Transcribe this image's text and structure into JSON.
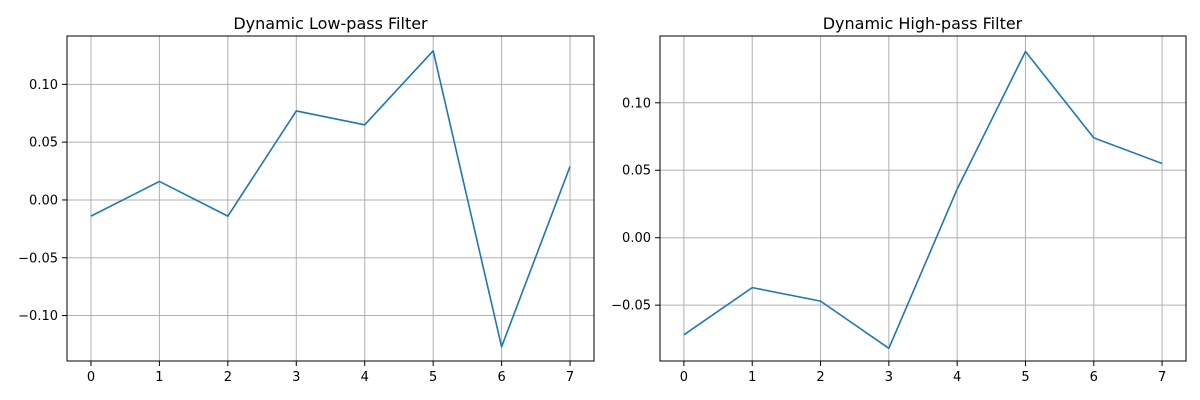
{
  "chart_data": [
    {
      "type": "line",
      "title": "Dynamic Low-pass Filter",
      "xlabel": "",
      "ylabel": "",
      "grid": true,
      "x": [
        0,
        1,
        2,
        3,
        4,
        5,
        6,
        7
      ],
      "xlim": [
        -0.35,
        7.35
      ],
      "ylim": [
        -0.1393,
        0.1418
      ],
      "xticks": [
        0,
        1,
        2,
        3,
        4,
        5,
        6,
        7
      ],
      "yticks": [
        -0.1,
        -0.05,
        0.0,
        0.05,
        0.1
      ],
      "ytick_labels": [
        "−0.10",
        "−0.05",
        "0.00",
        "0.05",
        "0.10"
      ],
      "series": [
        {
          "color": "#1f77b4",
          "values": [
            -0.014,
            0.016,
            -0.014,
            0.077,
            0.065,
            0.129,
            -0.127,
            0.029
          ]
        }
      ]
    },
    {
      "type": "line",
      "title": "Dynamic High-pass Filter",
      "xlabel": "",
      "ylabel": "",
      "grid": true,
      "x": [
        0,
        1,
        2,
        3,
        4,
        5,
        6,
        7
      ],
      "xlim": [
        -0.35,
        7.35
      ],
      "ylim": [
        -0.0914,
        0.1495
      ],
      "xticks": [
        0,
        1,
        2,
        3,
        4,
        5,
        6,
        7
      ],
      "yticks": [
        -0.05,
        0.0,
        0.05,
        0.1
      ],
      "ytick_labels": [
        "−0.05",
        "0.00",
        "0.05",
        "0.10"
      ],
      "series": [
        {
          "color": "#1f77b4",
          "values": [
            -0.072,
            -0.037,
            -0.047,
            -0.082,
            0.036,
            0.138,
            0.074,
            0.055
          ]
        }
      ]
    }
  ]
}
